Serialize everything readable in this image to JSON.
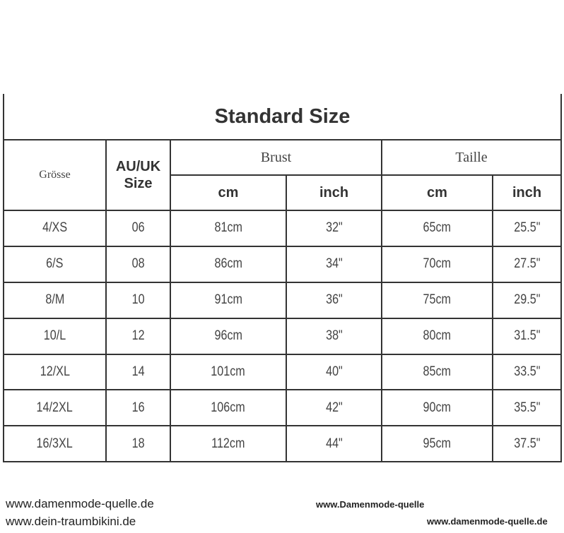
{
  "title": "Standard Size",
  "headers": {
    "size": "Grösse",
    "au_uk": "AU/UK Size",
    "brust": "Brust",
    "taille": "Taille",
    "cm": "cm",
    "inch": "inch"
  },
  "rows": [
    [
      "4/XS",
      "06",
      "81cm",
      "32\"",
      "65cm",
      "25.5\""
    ],
    [
      "6/S",
      "08",
      "86cm",
      "34\"",
      "70cm",
      "27.5\""
    ],
    [
      "8/M",
      "10",
      "91cm",
      "36\"",
      "75cm",
      "29.5\""
    ],
    [
      "10/L",
      "12",
      "96cm",
      "38\"",
      "80cm",
      "31.5\""
    ],
    [
      "12/XL",
      "14",
      "101cm",
      "40\"",
      "85cm",
      "33.5\""
    ],
    [
      "14/2XL",
      "16",
      "106cm",
      "42\"",
      "90cm",
      "35.5\""
    ],
    [
      "16/3XL",
      "18",
      "112cm",
      "44\"",
      "95cm",
      "37.5\""
    ]
  ],
  "watermarks": {
    "left_a": "www.damenmode-quelle.de",
    "left_b": "www.dein-traumbikini.de",
    "right_a": "www.Damenmode-quelle",
    "right_b": "www.damenmode-quelle.de"
  }
}
